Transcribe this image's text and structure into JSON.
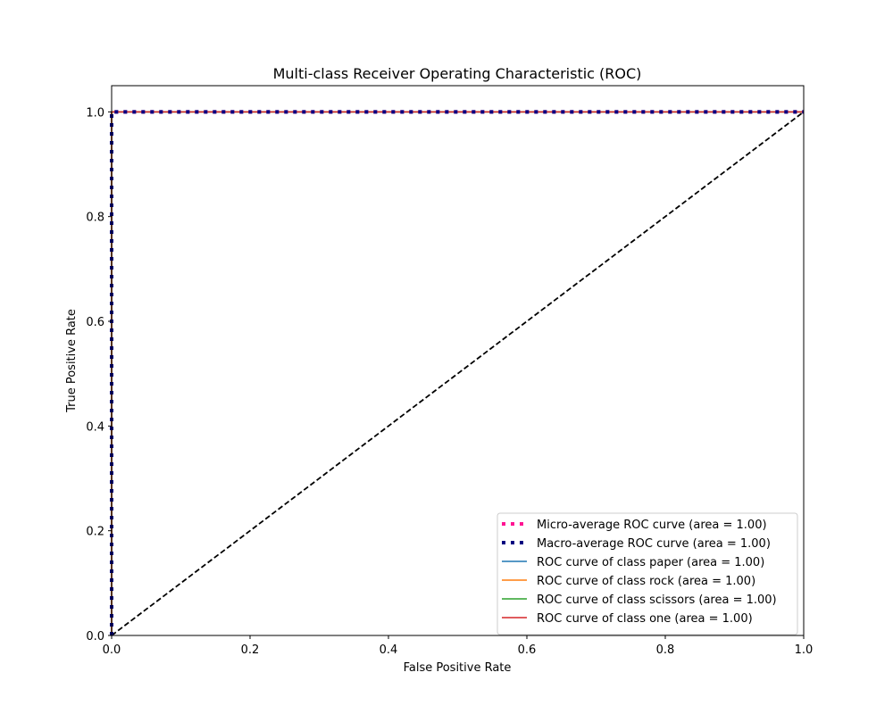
{
  "chart_data": {
    "type": "line",
    "title": "Multi-class Receiver Operating Characteristic (ROC)",
    "xlabel": "False Positive Rate",
    "ylabel": "True Positive Rate",
    "xlim": [
      0.0,
      1.0
    ],
    "ylim": [
      0.0,
      1.05
    ],
    "xticks": [
      "0.0",
      "0.2",
      "0.4",
      "0.6",
      "0.8",
      "1.0"
    ],
    "yticks": [
      "0.0",
      "0.2",
      "0.4",
      "0.6",
      "0.8",
      "1.0"
    ],
    "grid": false,
    "legend_position": "lower-right",
    "series": [
      {
        "name": "Micro-average ROC curve (area = 1.00)",
        "color": "#ff1493",
        "style": "dotted-thick",
        "x": [
          0.0,
          0.0,
          1.0
        ],
        "y": [
          0.0,
          1.0,
          1.0
        ]
      },
      {
        "name": "Macro-average ROC curve (area = 1.00)",
        "color": "#000080",
        "style": "dotted-thick",
        "x": [
          0.0,
          0.0,
          1.0
        ],
        "y": [
          0.0,
          1.0,
          1.0
        ]
      },
      {
        "name": "ROC curve of class paper (area = 1.00)",
        "color": "#1f77b4",
        "style": "solid",
        "x": [
          0.0,
          0.0,
          1.0
        ],
        "y": [
          0.0,
          1.0,
          1.0
        ]
      },
      {
        "name": "ROC curve of class rock (area = 1.00)",
        "color": "#ff7f0e",
        "style": "solid",
        "x": [
          0.0,
          0.0,
          1.0
        ],
        "y": [
          0.0,
          1.0,
          1.0
        ]
      },
      {
        "name": "ROC curve of class scissors (area = 1.00)",
        "color": "#2ca02c",
        "style": "solid",
        "x": [
          0.0,
          0.0,
          1.0
        ],
        "y": [
          0.0,
          1.0,
          1.0
        ]
      },
      {
        "name": "ROC curve of class one (area = 1.00)",
        "color": "#d62728",
        "style": "solid",
        "x": [
          0.0,
          0.0,
          1.0
        ],
        "y": [
          0.0,
          1.0,
          1.0
        ]
      }
    ],
    "reference_line": {
      "color": "#000000",
      "style": "dashed",
      "x": [
        0.0,
        1.0
      ],
      "y": [
        0.0,
        1.0
      ]
    }
  }
}
